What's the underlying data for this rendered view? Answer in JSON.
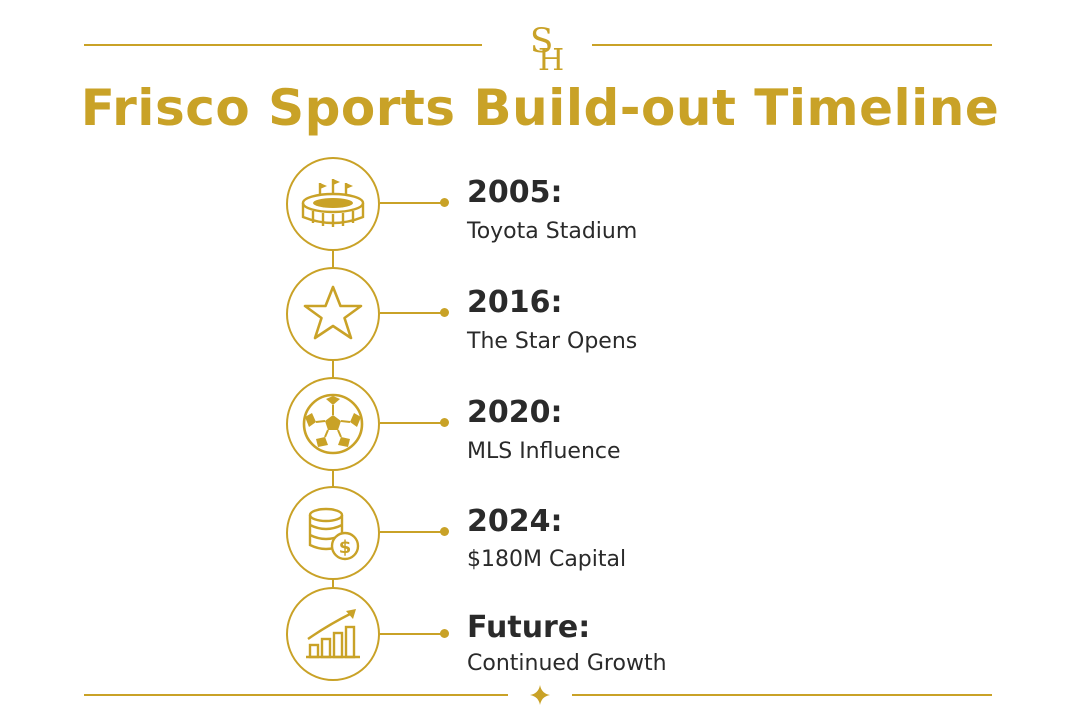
{
  "header": {
    "monogram": "SH",
    "title": "Frisco Sports Build-out Timeline"
  },
  "timeline": {
    "items": [
      {
        "year": "2005:",
        "label": "Toyota Stadium",
        "icon": "stadium-icon"
      },
      {
        "year": "2016:",
        "label": "The Star Opens",
        "icon": "star-icon"
      },
      {
        "year": "2020:",
        "label": "MLS Influence",
        "icon": "soccer-ball-icon"
      },
      {
        "year": "2024:",
        "label": "$180M Capital",
        "icon": "coins-dollar-icon"
      },
      {
        "year": "Future:",
        "label": "Continued Growth",
        "icon": "growth-chart-icon"
      }
    ]
  },
  "colors": {
    "accent": "#C9A227",
    "text": "#2a2a2a",
    "background": "#ffffff"
  }
}
